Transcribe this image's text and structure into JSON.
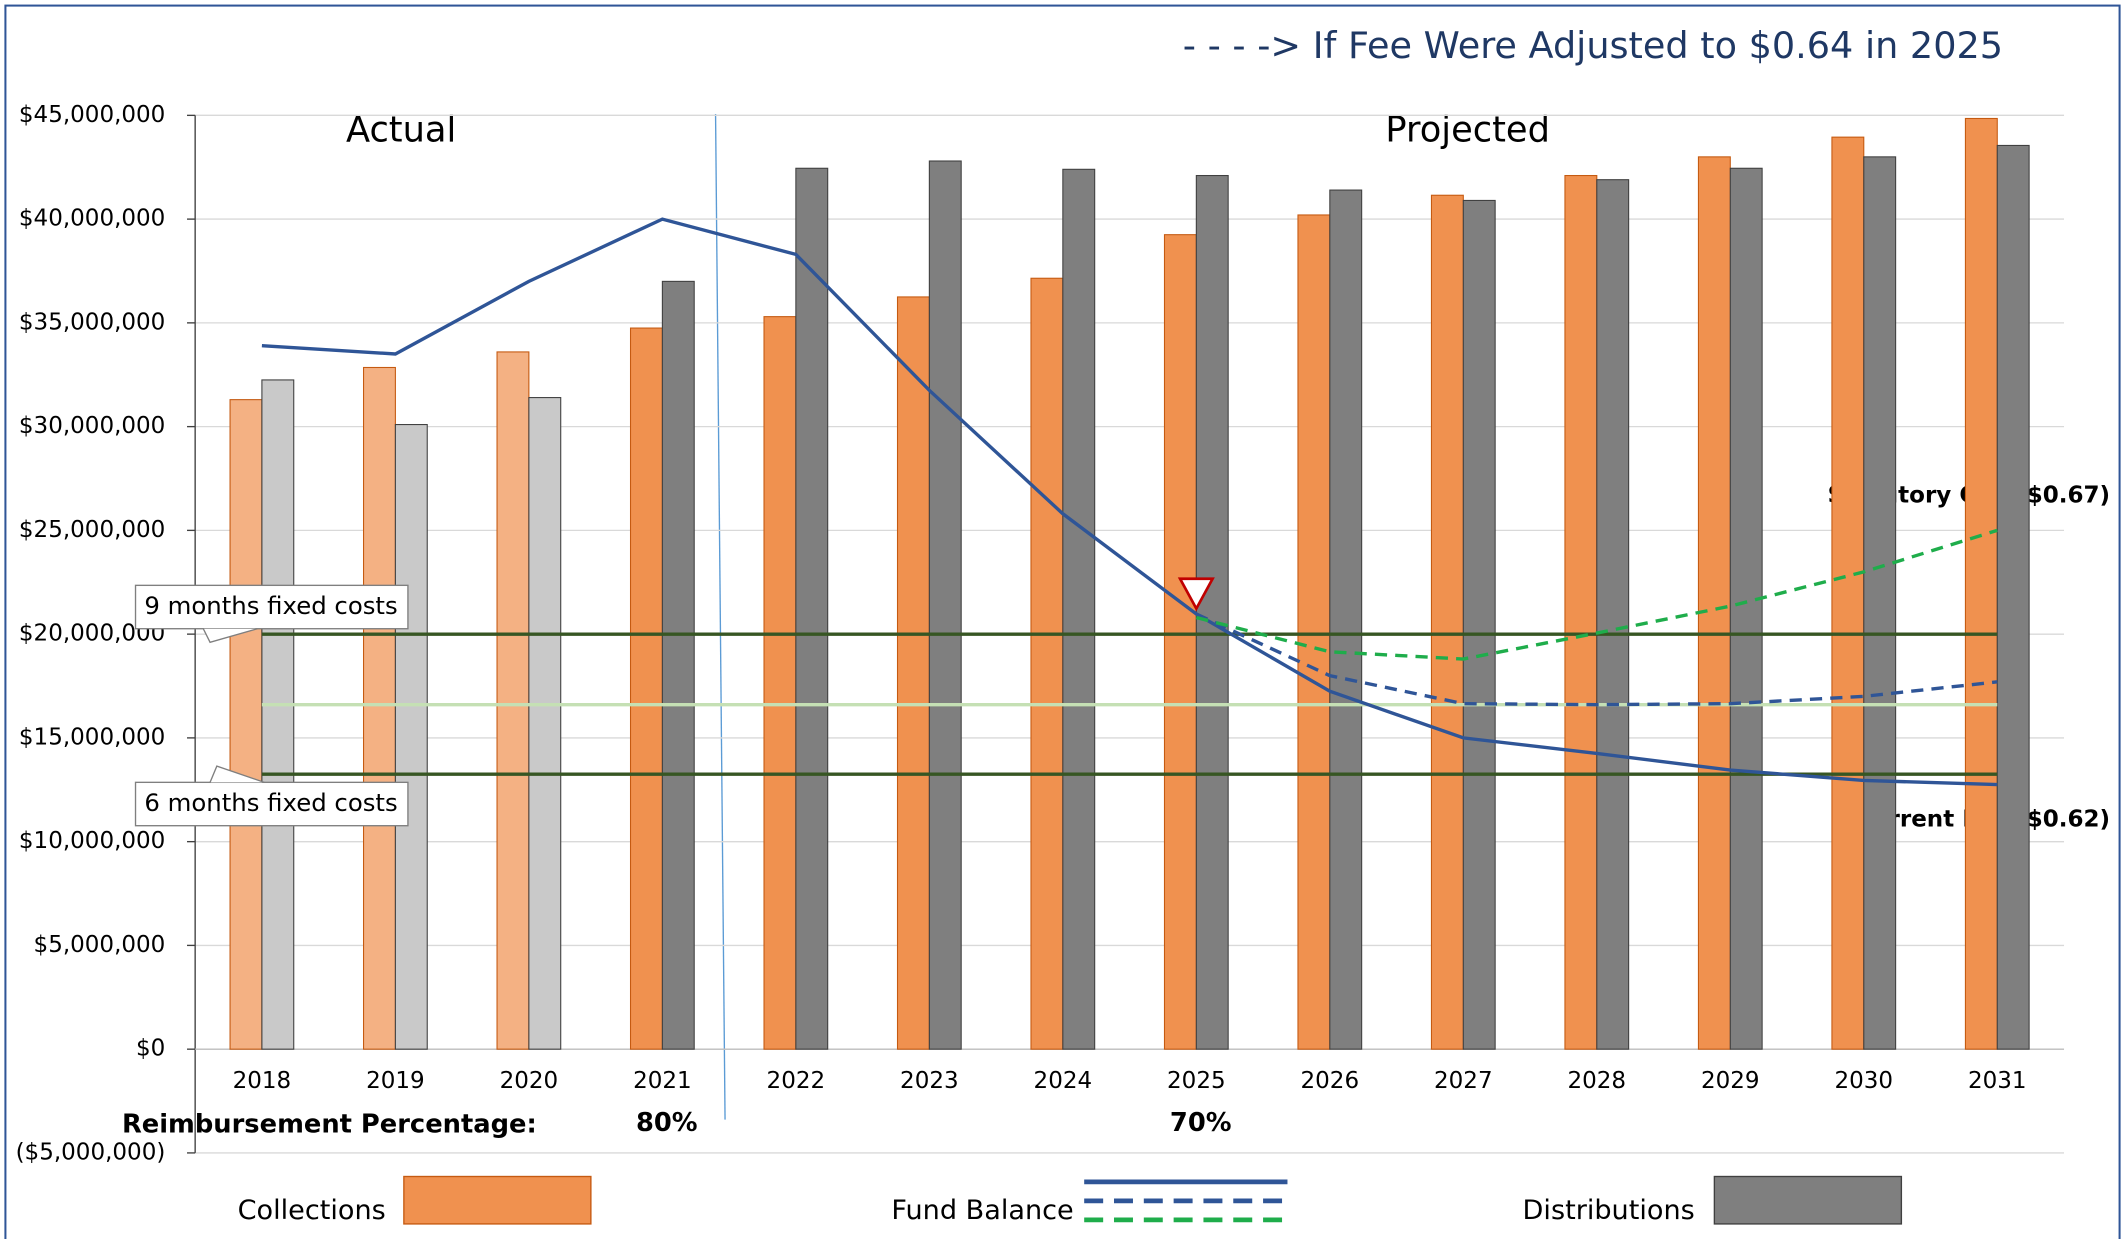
{
  "chart_data": {
    "type": "bar",
    "title": "- - - ->  If Fee Were Adjusted to $0.64 in 2025",
    "categories": [
      "2018",
      "2019",
      "2020",
      "2021",
      "2022",
      "2023",
      "2024",
      "2025",
      "2026",
      "2027",
      "2028",
      "2029",
      "2030",
      "2031"
    ],
    "actual_count": 3,
    "series": [
      {
        "name": "Collections",
        "type": "bar",
        "color": "#f0914f",
        "actual_color": "#f4b183",
        "stroke": "#c55a11",
        "values": [
          31300000,
          32850000,
          33600000,
          34750000,
          35300000,
          36250000,
          37150000,
          39250000,
          40200000,
          41150000,
          42100000,
          43000000,
          43950000,
          44850000
        ]
      },
      {
        "name": "Distributions",
        "type": "bar",
        "color": "#7f7f7f",
        "actual_color": "#c9c9c9",
        "stroke": "#404040",
        "values": [
          32250000,
          30100000,
          31400000,
          37000000,
          42450000,
          42800000,
          42400000,
          42100000,
          41400000,
          40900000,
          41900000,
          42450000,
          43000000,
          43550000
        ]
      },
      {
        "name": "Fund Balance",
        "type": "line",
        "color": "#2f5597",
        "dashed": false,
        "values": [
          33900000,
          33500000,
          37000000,
          40000000,
          38300000,
          31750000,
          25800000,
          20970000,
          17250000,
          15000000,
          14250000,
          13450000,
          12950000,
          12750000
        ]
      },
      {
        "type": "line",
        "color": "#2f5597",
        "dashed": true,
        "values": [
          null,
          null,
          null,
          null,
          null,
          null,
          null,
          20970000,
          18000000,
          16650000,
          16600000,
          16650000,
          17000000,
          17700000
        ]
      },
      {
        "type": "line",
        "color": "#1fad4b",
        "dashed": true,
        "values": [
          null,
          null,
          null,
          null,
          null,
          null,
          null,
          20800000,
          19150000,
          18800000,
          20050000,
          21350000,
          23000000,
          25000000
        ]
      }
    ],
    "reference_lines": [
      {
        "value": 20000000,
        "color": "#375623",
        "label": "9 months fixed costs"
      },
      {
        "value": 16600000,
        "color": "#c5e0b4"
      },
      {
        "value": 13250000,
        "color": "#375623",
        "label": "6 months fixed costs"
      }
    ],
    "ylim": [
      -5000000,
      45000000
    ],
    "yticks": [
      {
        "value": -5000000,
        "label": "($5,000,000)"
      },
      {
        "value": 0,
        "label": "$0"
      },
      {
        "value": 5000000,
        "label": "$5,000,000"
      },
      {
        "value": 10000000,
        "label": "$10,000,000"
      },
      {
        "value": 15000000,
        "label": "$15,000,000"
      },
      {
        "value": 20000000,
        "label": "$20,000,000"
      },
      {
        "value": 25000000,
        "label": "$25,000,000"
      },
      {
        "value": 30000000,
        "label": "$30,000,000"
      },
      {
        "value": 35000000,
        "label": "$35,000,000"
      },
      {
        "value": 40000000,
        "label": "$40,000,000"
      },
      {
        "value": 45000000,
        "label": "$45,000,000"
      }
    ],
    "grid": true,
    "annotations": {
      "actual": "Actual",
      "projected": "Projected",
      "cap": "Statutory Cap ($0.67)",
      "current": "Current Fee ($0.62)",
      "reimbursement": "Reimbursement Percentage:",
      "reimb_actual": "80%",
      "reimb_projected": "70%"
    }
  }
}
